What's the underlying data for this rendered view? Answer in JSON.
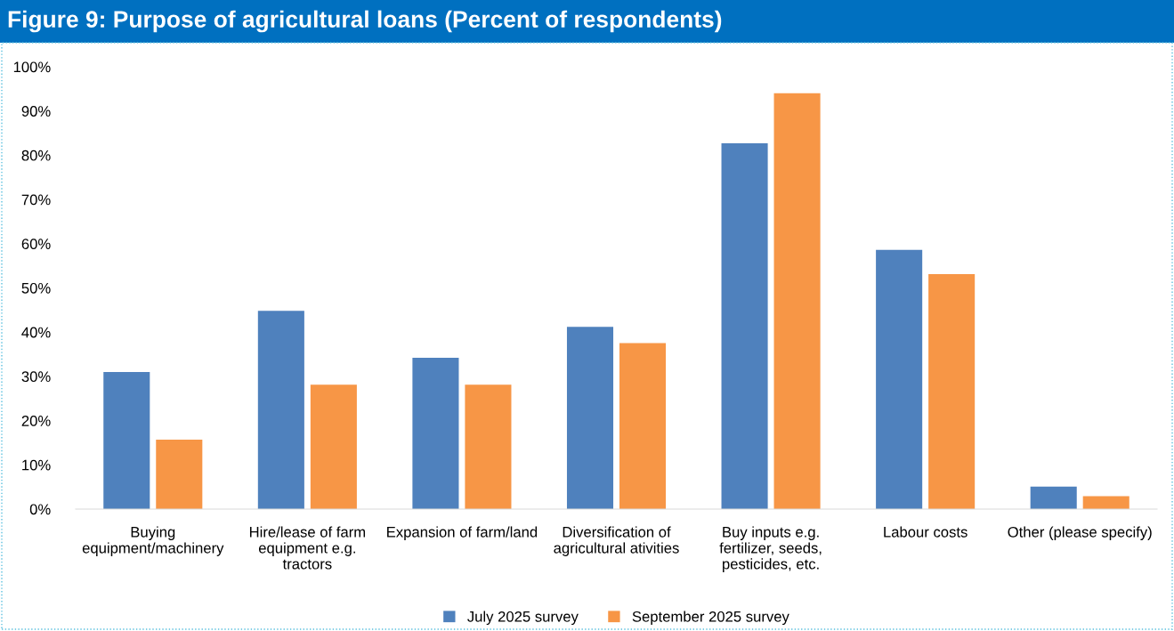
{
  "chart_data": {
    "type": "bar",
    "title": "Figure 9: Purpose of agricultural loans (Percent of respondents)",
    "categories": [
      "Buying equipment/machinery",
      "Hire/lease of farm equipment e.g. tractors",
      "Expansion of farm/land",
      "Diversification of agricultural ativities",
      "Buy inputs e.g. fertilizer, seeds, pesticides, etc.",
      "Labour costs",
      "Other (please specify)"
    ],
    "series": [
      {
        "name": "July 2025 survey",
        "color": "#4f81bd",
        "values": [
          31.0,
          44.8,
          34.2,
          41.2,
          82.7,
          58.6,
          5.1
        ]
      },
      {
        "name": "September 2025 survey",
        "color": "#f79646",
        "values": [
          15.7,
          28.1,
          28.1,
          37.5,
          94.0,
          53.1,
          2.9
        ]
      }
    ],
    "ylim": [
      0,
      100
    ],
    "yticks": [
      {
        "value": 0,
        "label": "0%"
      },
      {
        "value": 10,
        "label": "10%"
      },
      {
        "value": 20,
        "label": "20%"
      },
      {
        "value": 30,
        "label": "30%"
      },
      {
        "value": 40,
        "label": "40%"
      },
      {
        "value": 50,
        "label": "50%"
      },
      {
        "value": 60,
        "label": "60%"
      },
      {
        "value": 70,
        "label": "70%"
      },
      {
        "value": 80,
        "label": "80%"
      },
      {
        "value": 90,
        "label": "90%"
      },
      {
        "value": 100,
        "label": "100%"
      }
    ],
    "grid": false,
    "legend": "bottom"
  }
}
